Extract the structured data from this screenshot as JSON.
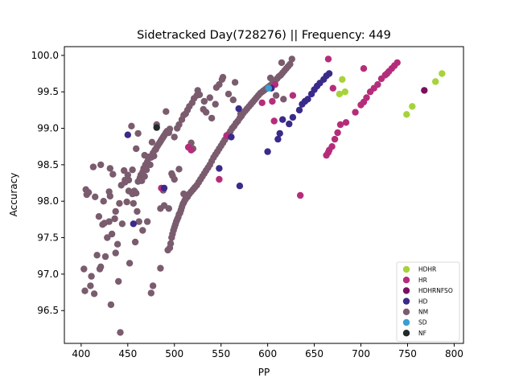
{
  "chart_data": {
    "type": "scatter",
    "title": "Sidetracked Day(728276) || Frequency: 449",
    "xlabel": "PP",
    "ylabel": "Accuracy",
    "xlim": [
      382,
      810
    ],
    "ylim": [
      96.05,
      100.12
    ],
    "xticks": [
      400,
      450,
      500,
      550,
      600,
      650,
      700,
      750,
      800
    ],
    "yticks": [
      96.5,
      97.0,
      97.5,
      98.0,
      98.5,
      99.0,
      99.5,
      100.0
    ],
    "xtick_labels": [
      "400",
      "450",
      "500",
      "550",
      "600",
      "650",
      "700",
      "750",
      "800"
    ],
    "ytick_labels": [
      "96.5",
      "97.0",
      "97.5",
      "98.0",
      "98.5",
      "99.0",
      "99.5",
      "100.0"
    ],
    "grid": false,
    "legend_position": "lower-right",
    "series": [
      {
        "name": "NM",
        "color": "#7a5c6e",
        "points": [
          [
            403,
            97.07
          ],
          [
            404,
            96.77
          ],
          [
            405,
            98.16
          ],
          [
            406,
            98.09
          ],
          [
            408,
            98.12
          ],
          [
            410,
            96.84
          ],
          [
            411,
            96.97
          ],
          [
            413,
            98.47
          ],
          [
            414,
            96.73
          ],
          [
            417,
            97.26
          ],
          [
            419,
            97.79
          ],
          [
            420,
            97.07
          ],
          [
            421,
            97.1
          ],
          [
            421,
            98.5
          ],
          [
            423,
            97.68
          ],
          [
            424,
            98.0
          ],
          [
            426,
            97.24
          ],
          [
            428,
            97.5
          ],
          [
            430,
            97.72
          ],
          [
            430,
            98.13
          ],
          [
            431,
            98.45
          ],
          [
            431,
            98.07
          ],
          [
            432,
            96.58
          ],
          [
            433,
            97.55
          ],
          [
            434,
            98.37
          ],
          [
            436,
            97.76
          ],
          [
            437,
            97.86
          ],
          [
            439,
            97.41
          ],
          [
            440,
            96.9
          ],
          [
            441,
            97.97
          ],
          [
            442,
            96.2
          ],
          [
            443,
            98.22
          ],
          [
            444,
            97.69
          ],
          [
            446,
            98.42
          ],
          [
            447,
            98.29
          ],
          [
            449,
            97.99
          ],
          [
            450,
            98.36
          ],
          [
            451,
            98.14
          ],
          [
            452,
            97.15
          ],
          [
            454,
            99.03
          ],
          [
            455,
            98.1
          ],
          [
            456,
            97.97
          ],
          [
            457,
            98.14
          ],
          [
            458,
            97.44
          ],
          [
            459,
            98.11
          ],
          [
            460,
            97.86
          ],
          [
            461,
            98.27
          ],
          [
            461,
            98.93
          ],
          [
            462,
            97.72
          ],
          [
            463,
            98.32
          ],
          [
            464,
            98.36
          ],
          [
            465,
            98.28
          ],
          [
            466,
            97.6
          ],
          [
            466,
            98.4
          ],
          [
            467,
            98.45
          ],
          [
            468,
            98.63
          ],
          [
            469,
            98.5
          ],
          [
            470,
            98.43
          ],
          [
            471,
            97.72
          ],
          [
            471,
            98.54
          ],
          [
            472,
            98.59
          ],
          [
            473,
            98.61
          ],
          [
            474,
            98.5
          ],
          [
            475,
            96.74
          ],
          [
            475,
            98.6
          ],
          [
            476,
            98.81
          ],
          [
            477,
            96.84
          ],
          [
            477,
            98.66
          ],
          [
            478,
            98.62
          ],
          [
            479,
            98.7
          ],
          [
            480,
            98.71
          ],
          [
            481,
            98.74
          ],
          [
            482,
            98.76
          ],
          [
            483,
            98.78
          ],
          [
            484,
            98.8
          ],
          [
            485,
            98.82
          ],
          [
            485,
            97.08
          ],
          [
            486,
            98.84
          ],
          [
            487,
            98.86
          ],
          [
            488,
            98.88
          ],
          [
            488,
            98.15
          ],
          [
            489,
            98.9
          ],
          [
            489,
            97.94
          ],
          [
            490,
            98.92
          ],
          [
            491,
            98.94
          ],
          [
            491,
            99.23
          ],
          [
            492,
            98.96
          ],
          [
            493,
            97.33
          ],
          [
            494,
            97.9
          ],
          [
            494,
            98.94
          ],
          [
            495,
            97.36
          ],
          [
            495,
            98.99
          ],
          [
            496,
            97.42
          ],
          [
            497,
            97.5
          ],
          [
            497,
            98.38
          ],
          [
            498,
            97.55
          ],
          [
            499,
            97.6
          ],
          [
            500,
            97.64
          ],
          [
            500,
            98.88
          ],
          [
            501,
            97.68
          ],
          [
            502,
            97.72
          ],
          [
            503,
            97.75
          ],
          [
            504,
            97.78
          ],
          [
            505,
            97.82
          ],
          [
            506,
            97.84
          ],
          [
            507,
            97.88
          ],
          [
            508,
            97.92
          ],
          [
            509,
            97.96
          ],
          [
            510,
            97.98
          ],
          [
            511,
            98.01
          ],
          [
            503,
            99.0
          ],
          [
            505,
            99.05
          ],
          [
            508,
            99.12
          ],
          [
            510,
            99.18
          ],
          [
            512,
            99.2
          ],
          [
            514,
            99.25
          ],
          [
            516,
            99.3
          ],
          [
            519,
            99.35
          ],
          [
            521,
            99.41
          ],
          [
            524,
            99.45
          ],
          [
            500,
            98.3
          ],
          [
            505,
            98.44
          ],
          [
            510,
            98.1
          ],
          [
            512,
            98.03
          ],
          [
            514,
            98.06
          ],
          [
            516,
            98.1
          ],
          [
            518,
            98.13
          ],
          [
            520,
            98.16
          ],
          [
            522,
            98.19
          ],
          [
            524,
            98.22
          ],
          [
            526,
            98.26
          ],
          [
            528,
            98.3
          ],
          [
            530,
            98.34
          ],
          [
            532,
            98.38
          ],
          [
            534,
            98.42
          ],
          [
            536,
            98.46
          ],
          [
            538,
            98.5
          ],
          [
            540,
            98.55
          ],
          [
            542,
            98.6
          ],
          [
            544,
            98.64
          ],
          [
            546,
            98.68
          ],
          [
            548,
            98.72
          ],
          [
            550,
            98.76
          ],
          [
            552,
            98.8
          ],
          [
            554,
            98.84
          ],
          [
            556,
            98.88
          ],
          [
            558,
            98.92
          ],
          [
            560,
            98.96
          ],
          [
            562,
            99.0
          ],
          [
            564,
            99.03
          ],
          [
            566,
            99.07
          ],
          [
            568,
            99.1
          ],
          [
            570,
            99.14
          ],
          [
            572,
            99.17
          ],
          [
            574,
            99.21
          ],
          [
            576,
            99.24
          ],
          [
            578,
            99.27
          ],
          [
            580,
            99.3
          ],
          [
            582,
            99.33
          ],
          [
            584,
            99.36
          ],
          [
            586,
            99.39
          ],
          [
            588,
            99.42
          ],
          [
            590,
            99.45
          ],
          [
            592,
            99.48
          ],
          [
            594,
            99.5
          ],
          [
            596,
            99.52
          ],
          [
            598,
            99.54
          ],
          [
            600,
            99.56
          ],
          [
            602,
            99.58
          ],
          [
            604,
            99.6
          ],
          [
            606,
            99.63
          ],
          [
            608,
            99.65
          ],
          [
            610,
            99.68
          ],
          [
            612,
            99.71
          ],
          [
            614,
            99.73
          ],
          [
            616,
            99.76
          ],
          [
            618,
            99.79
          ],
          [
            620,
            99.82
          ],
          [
            622,
            99.85
          ],
          [
            624,
            99.88
          ],
          [
            527,
            99.46
          ],
          [
            532,
            99.37
          ],
          [
            538,
            99.42
          ],
          [
            545,
            99.56
          ],
          [
            548,
            99.6
          ],
          [
            551,
            99.67
          ],
          [
            552,
            99.7
          ],
          [
            558,
            99.47
          ],
          [
            563,
            99.39
          ],
          [
            565,
            99.63
          ],
          [
            571,
            99.2
          ],
          [
            540,
            99.14
          ],
          [
            544,
            99.33
          ],
          [
            534,
            99.22
          ],
          [
            518,
            98.8
          ],
          [
            520,
            98.72
          ],
          [
            525,
            99.52
          ],
          [
            531,
            99.26
          ],
          [
            498,
            98.35
          ],
          [
            485,
            97.9
          ],
          [
            481,
            99.05
          ],
          [
            468,
            98.34
          ],
          [
            459,
            98.72
          ],
          [
            455,
            98.43
          ],
          [
            451,
            98.29
          ],
          [
            447,
            98.26
          ],
          [
            437,
            97.29
          ],
          [
            425,
            97.7
          ],
          [
            415,
            98.06
          ],
          [
            609,
            99.45
          ],
          [
            617,
            99.4
          ],
          [
            626,
            99.95
          ],
          [
            615,
            99.9
          ],
          [
            603,
            99.69
          ],
          [
            596,
            99.52
          ]
        ]
      },
      {
        "name": "HR",
        "color": "#b52d7a",
        "points": [
          [
            486,
            98.18
          ],
          [
            515,
            98.74
          ],
          [
            518,
            98.7
          ],
          [
            548,
            98.3
          ],
          [
            556,
            98.9
          ],
          [
            594,
            99.35
          ],
          [
            605,
            99.37
          ],
          [
            607,
            99.1
          ],
          [
            608,
            99.6
          ],
          [
            627,
            99.45
          ],
          [
            635,
            98.08
          ],
          [
            663,
            98.63
          ],
          [
            665,
            98.67
          ],
          [
            666,
            98.7
          ],
          [
            669,
            98.75
          ],
          [
            672,
            98.85
          ],
          [
            675,
            98.94
          ],
          [
            678,
            99.05
          ],
          [
            684,
            99.08
          ],
          [
            694,
            99.22
          ],
          [
            700,
            99.32
          ],
          [
            703,
            99.36
          ],
          [
            706,
            99.42
          ],
          [
            710,
            99.5
          ],
          [
            714,
            99.55
          ],
          [
            718,
            99.6
          ],
          [
            722,
            99.68
          ],
          [
            726,
            99.73
          ],
          [
            730,
            99.78
          ],
          [
            733,
            99.82
          ],
          [
            736,
            99.86
          ],
          [
            739,
            99.9
          ],
          [
            703,
            99.82
          ],
          [
            665,
            99.95
          ],
          [
            670,
            99.55
          ],
          [
            728,
            99.75
          ]
        ]
      },
      {
        "name": "HD",
        "color": "#3b2a8a",
        "points": [
          [
            450,
            98.91
          ],
          [
            456,
            97.69
          ],
          [
            489,
            98.18
          ],
          [
            548,
            98.45
          ],
          [
            561,
            98.88
          ],
          [
            569,
            99.27
          ],
          [
            570,
            98.21
          ],
          [
            600,
            98.68
          ],
          [
            604,
            99.55
          ],
          [
            611,
            98.85
          ],
          [
            613,
            98.93
          ],
          [
            616,
            99.12
          ],
          [
            623,
            99.06
          ],
          [
            627,
            99.15
          ],
          [
            634,
            99.25
          ],
          [
            637,
            99.33
          ],
          [
            640,
            99.37
          ],
          [
            643,
            99.4
          ],
          [
            647,
            99.47
          ],
          [
            650,
            99.53
          ],
          [
            653,
            99.58
          ],
          [
            656,
            99.62
          ],
          [
            660,
            99.67
          ],
          [
            663,
            99.72
          ],
          [
            666,
            99.75
          ]
        ]
      },
      {
        "name": "HDHR",
        "color": "#a6d33b",
        "points": [
          [
            677,
            99.47
          ],
          [
            680,
            99.67
          ],
          [
            683,
            99.5
          ],
          [
            749,
            99.19
          ],
          [
            755,
            99.3
          ],
          [
            780,
            99.64
          ],
          [
            787,
            99.75
          ]
        ]
      },
      {
        "name": "HDHRNFSO",
        "color": "#7a1060",
        "points": [
          [
            768,
            99.52
          ]
        ]
      },
      {
        "name": "SD",
        "color": "#3a9fd0",
        "points": [
          [
            601,
            99.55
          ]
        ]
      },
      {
        "name": "NF",
        "color": "#222a2a",
        "points": [
          [
            481,
            99.01
          ]
        ]
      }
    ],
    "legend_order": [
      "HDHR",
      "HR",
      "HDHRNFSO",
      "HD",
      "NM",
      "SD",
      "NF"
    ]
  }
}
